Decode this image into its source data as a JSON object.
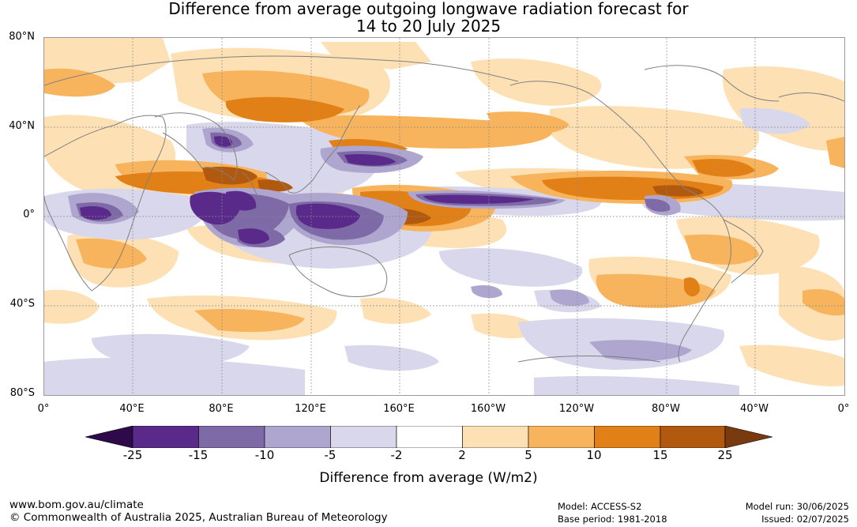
{
  "title": {
    "line1": "Difference from average outgoing longwave radiation forecast for",
    "line2": "14 to 20 July 2025"
  },
  "axes": {
    "lat_labels": [
      "80°N",
      "40°N",
      "0°",
      "40°S",
      "80°S"
    ],
    "lon_labels": [
      "0°",
      "40°E",
      "80°E",
      "120°E",
      "160°E",
      "160°W",
      "120°W",
      "80°W",
      "40°W",
      "0°"
    ]
  },
  "colorbar": {
    "ticks": [
      "-25",
      "-15",
      "-10",
      "-5",
      "-2",
      "2",
      "5",
      "10",
      "15",
      "25"
    ],
    "colors": [
      "#2e0a4a",
      "#5a2a8a",
      "#7f6aa8",
      "#afa6d0",
      "#d8d7eb",
      "#ffffff",
      "#fde0b4",
      "#f8b35d",
      "#e08016",
      "#b1590e",
      "#7a3a10"
    ],
    "label": "Difference from average (W/m2)"
  },
  "footer": {
    "url": "www.bom.gov.au/climate",
    "copyright": "© Commonwealth of Australia 2025, Australian Bureau of Meteorology",
    "model": "Model: ACCESS-S2",
    "base_period": "Base period: 1981-2018",
    "model_run": "Model run: 30/06/2025",
    "issued": "Issued: 02/07/2025"
  }
}
